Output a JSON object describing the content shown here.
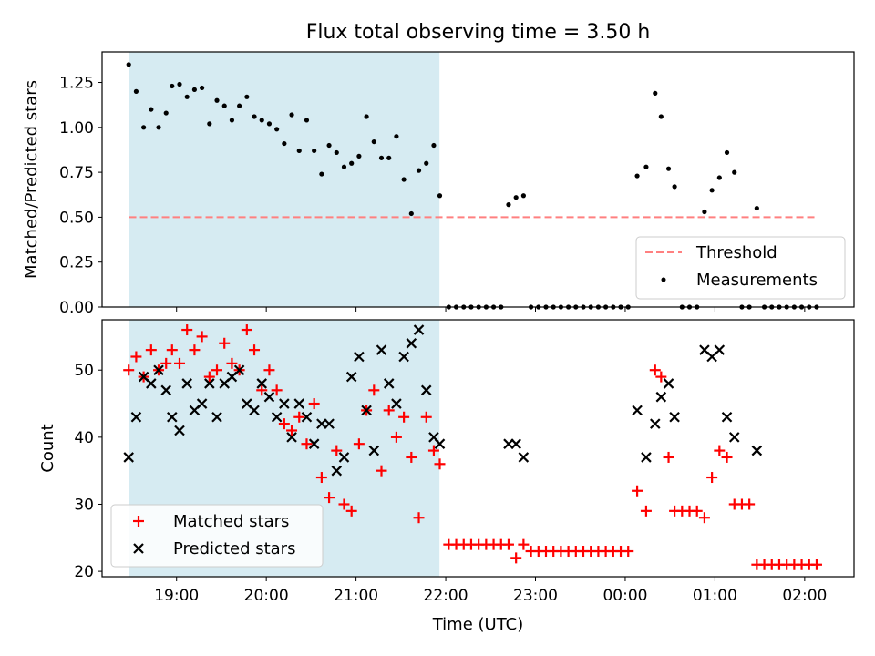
{
  "chart_data": [
    {
      "type": "scatter",
      "title": "Flux total observing time = 3.50 h",
      "ylabel": "Matched/Predicted stars",
      "xlim": [
        18.17,
        2.55
      ],
      "ylim": [
        0,
        1.42
      ],
      "yticks": [
        "0.00",
        "0.25",
        "0.50",
        "0.75",
        "1.00",
        "1.25"
      ],
      "shaded_span": [
        18.47,
        21.93
      ],
      "threshold": 0.5,
      "threshold_span": [
        18.47,
        2.12
      ],
      "legend_position": "lower right",
      "series": [
        {
          "name": "Threshold",
          "style": "dashed-line",
          "color": "#ff8080"
        },
        {
          "name": "Measurements",
          "style": "dot",
          "color": "#000000",
          "points": [
            [
              "18:28",
              1.35
            ],
            [
              "18:33",
              1.2
            ],
            [
              "18:38",
              1.0
            ],
            [
              "18:43",
              1.1
            ],
            [
              "18:48",
              1.0
            ],
            [
              "18:53",
              1.08
            ],
            [
              "18:57",
              1.23
            ],
            [
              "19:02",
              1.24
            ],
            [
              "19:07",
              1.17
            ],
            [
              "19:12",
              1.21
            ],
            [
              "19:17",
              1.22
            ],
            [
              "19:22",
              1.02
            ],
            [
              "19:27",
              1.15
            ],
            [
              "19:32",
              1.12
            ],
            [
              "19:37",
              1.04
            ],
            [
              "19:42",
              1.12
            ],
            [
              "19:47",
              1.17
            ],
            [
              "19:52",
              1.06
            ],
            [
              "19:57",
              1.04
            ],
            [
              "20:02",
              1.02
            ],
            [
              "20:07",
              0.99
            ],
            [
              "20:12",
              0.91
            ],
            [
              "20:17",
              1.07
            ],
            [
              "20:22",
              0.87
            ],
            [
              "20:27",
              1.04
            ],
            [
              "20:32",
              0.87
            ],
            [
              "20:37",
              0.74
            ],
            [
              "20:42",
              0.9
            ],
            [
              "20:47",
              0.86
            ],
            [
              "20:52",
              0.78
            ],
            [
              "20:57",
              0.8
            ],
            [
              "21:02",
              0.84
            ],
            [
              "21:07",
              1.06
            ],
            [
              "21:12",
              0.92
            ],
            [
              "21:17",
              0.83
            ],
            [
              "21:22",
              0.83
            ],
            [
              "21:27",
              0.95
            ],
            [
              "21:32",
              0.71
            ],
            [
              "21:37",
              0.52
            ],
            [
              "21:42",
              0.76
            ],
            [
              "21:47",
              0.8
            ],
            [
              "21:52",
              0.9
            ],
            [
              "21:56",
              0.62
            ],
            [
              "22:02",
              0.0
            ],
            [
              "22:07",
              0.0
            ],
            [
              "22:12",
              0.0
            ],
            [
              "22:17",
              0.0
            ],
            [
              "22:22",
              0.0
            ],
            [
              "22:27",
              0.0
            ],
            [
              "22:32",
              0.0
            ],
            [
              "22:37",
              0.0
            ],
            [
              "22:42",
              0.57
            ],
            [
              "22:47",
              0.61
            ],
            [
              "22:52",
              0.62
            ],
            [
              "22:57",
              0.0
            ],
            [
              "23:02",
              0.0
            ],
            [
              "23:07",
              0.0
            ],
            [
              "23:12",
              0.0
            ],
            [
              "23:17",
              0.0
            ],
            [
              "23:22",
              0.0
            ],
            [
              "23:27",
              0.0
            ],
            [
              "23:32",
              0.0
            ],
            [
              "23:37",
              0.0
            ],
            [
              "23:42",
              0.0
            ],
            [
              "23:47",
              0.0
            ],
            [
              "23:52",
              0.0
            ],
            [
              "23:57",
              0.0
            ],
            [
              "00:02",
              0.0
            ],
            [
              "00:08",
              0.73
            ],
            [
              "00:14",
              0.78
            ],
            [
              "00:20",
              1.19
            ],
            [
              "00:24",
              1.06
            ],
            [
              "00:29",
              0.77
            ],
            [
              "00:33",
              0.67
            ],
            [
              "00:38",
              0.0
            ],
            [
              "00:43",
              0.0
            ],
            [
              "00:48",
              0.0
            ],
            [
              "00:53",
              0.53
            ],
            [
              "00:58",
              0.65
            ],
            [
              "01:03",
              0.72
            ],
            [
              "01:08",
              0.86
            ],
            [
              "01:13",
              0.75
            ],
            [
              "01:18",
              0.0
            ],
            [
              "01:23",
              0.0
            ],
            [
              "01:28",
              0.55
            ],
            [
              "01:33",
              0.0
            ],
            [
              "01:38",
              0.0
            ],
            [
              "01:43",
              0.0
            ],
            [
              "01:48",
              0.0
            ],
            [
              "01:53",
              0.0
            ],
            [
              "01:58",
              0.0
            ],
            [
              "02:03",
              0.0
            ],
            [
              "02:08",
              0.0
            ]
          ]
        }
      ]
    },
    {
      "type": "scatter",
      "xlabel": "Time (UTC)",
      "ylabel": "Count",
      "xlim": [
        18.17,
        2.55
      ],
      "ylim": [
        19.2,
        57.5
      ],
      "yticks": [
        "20",
        "30",
        "40",
        "50"
      ],
      "xticks": [
        "19:00",
        "20:00",
        "21:00",
        "22:00",
        "23:00",
        "00:00",
        "01:00",
        "02:00"
      ],
      "shaded_span": [
        18.47,
        21.93
      ],
      "legend_position": "lower left",
      "series": [
        {
          "name": "Matched stars",
          "marker": "plus",
          "color": "#ff0000",
          "points": [
            [
              "18:28",
              50
            ],
            [
              "18:33",
              52
            ],
            [
              "18:38",
              49
            ],
            [
              "18:43",
              53
            ],
            [
              "18:48",
              50
            ],
            [
              "18:53",
              51
            ],
            [
              "18:57",
              53
            ],
            [
              "19:02",
              51
            ],
            [
              "19:07",
              56
            ],
            [
              "19:12",
              53
            ],
            [
              "19:17",
              55
            ],
            [
              "19:22",
              49
            ],
            [
              "19:27",
              50
            ],
            [
              "19:32",
              54
            ],
            [
              "19:37",
              51
            ],
            [
              "19:42",
              50
            ],
            [
              "19:47",
              56
            ],
            [
              "19:52",
              53
            ],
            [
              "19:57",
              47
            ],
            [
              "20:02",
              50
            ],
            [
              "20:07",
              47
            ],
            [
              "20:12",
              42
            ],
            [
              "20:17",
              41
            ],
            [
              "20:22",
              43
            ],
            [
              "20:27",
              39
            ],
            [
              "20:32",
              45
            ],
            [
              "20:37",
              34
            ],
            [
              "20:42",
              31
            ],
            [
              "20:47",
              38
            ],
            [
              "20:52",
              30
            ],
            [
              "20:57",
              29
            ],
            [
              "21:02",
              39
            ],
            [
              "21:07",
              44
            ],
            [
              "21:12",
              47
            ],
            [
              "21:17",
              35
            ],
            [
              "21:22",
              44
            ],
            [
              "21:27",
              40
            ],
            [
              "21:32",
              43
            ],
            [
              "21:37",
              37
            ],
            [
              "21:42",
              28
            ],
            [
              "21:47",
              43
            ],
            [
              "21:52",
              38
            ],
            [
              "21:56",
              36
            ],
            [
              "22:02",
              24
            ],
            [
              "22:07",
              24
            ],
            [
              "22:12",
              24
            ],
            [
              "22:17",
              24
            ],
            [
              "22:22",
              24
            ],
            [
              "22:27",
              24
            ],
            [
              "22:32",
              24
            ],
            [
              "22:37",
              24
            ],
            [
              "22:42",
              24
            ],
            [
              "22:47",
              22
            ],
            [
              "22:52",
              24
            ],
            [
              "22:57",
              23
            ],
            [
              "23:02",
              23
            ],
            [
              "23:07",
              23
            ],
            [
              "23:12",
              23
            ],
            [
              "23:17",
              23
            ],
            [
              "23:22",
              23
            ],
            [
              "23:27",
              23
            ],
            [
              "23:32",
              23
            ],
            [
              "23:37",
              23
            ],
            [
              "23:42",
              23
            ],
            [
              "23:47",
              23
            ],
            [
              "23:52",
              23
            ],
            [
              "23:57",
              23
            ],
            [
              "00:02",
              23
            ],
            [
              "00:08",
              32
            ],
            [
              "00:14",
              29
            ],
            [
              "00:20",
              50
            ],
            [
              "00:24",
              49
            ],
            [
              "00:29",
              37
            ],
            [
              "00:33",
              29
            ],
            [
              "00:38",
              29
            ],
            [
              "00:43",
              29
            ],
            [
              "00:48",
              29
            ],
            [
              "00:53",
              28
            ],
            [
              "00:58",
              34
            ],
            [
              "01:03",
              38
            ],
            [
              "01:08",
              37
            ],
            [
              "01:13",
              30
            ],
            [
              "01:18",
              30
            ],
            [
              "01:23",
              30
            ],
            [
              "01:28",
              21
            ],
            [
              "01:33",
              21
            ],
            [
              "01:38",
              21
            ],
            [
              "01:43",
              21
            ],
            [
              "01:48",
              21
            ],
            [
              "01:53",
              21
            ],
            [
              "01:58",
              21
            ],
            [
              "02:03",
              21
            ],
            [
              "02:08",
              21
            ]
          ]
        },
        {
          "name": "Predicted stars",
          "marker": "x",
          "color": "#000000",
          "points": [
            [
              "18:28",
              37
            ],
            [
              "18:33",
              43
            ],
            [
              "18:38",
              49
            ],
            [
              "18:43",
              48
            ],
            [
              "18:48",
              50
            ],
            [
              "18:53",
              47
            ],
            [
              "18:57",
              43
            ],
            [
              "19:02",
              41
            ],
            [
              "19:07",
              48
            ],
            [
              "19:12",
              44
            ],
            [
              "19:17",
              45
            ],
            [
              "19:22",
              48
            ],
            [
              "19:27",
              43
            ],
            [
              "19:32",
              48
            ],
            [
              "19:37",
              49
            ],
            [
              "19:42",
              50
            ],
            [
              "19:47",
              45
            ],
            [
              "19:52",
              44
            ],
            [
              "19:57",
              48
            ],
            [
              "20:02",
              46
            ],
            [
              "20:07",
              43
            ],
            [
              "20:12",
              45
            ],
            [
              "20:17",
              40
            ],
            [
              "20:22",
              45
            ],
            [
              "20:27",
              43
            ],
            [
              "20:32",
              39
            ],
            [
              "20:37",
              42
            ],
            [
              "20:42",
              42
            ],
            [
              "20:47",
              35
            ],
            [
              "20:52",
              37
            ],
            [
              "20:57",
              49
            ],
            [
              "21:02",
              52
            ],
            [
              "21:07",
              44
            ],
            [
              "21:12",
              38
            ],
            [
              "21:17",
              53
            ],
            [
              "21:22",
              48
            ],
            [
              "21:27",
              45
            ],
            [
              "21:32",
              52
            ],
            [
              "21:37",
              54
            ],
            [
              "21:42",
              56
            ],
            [
              "21:47",
              47
            ],
            [
              "21:52",
              40
            ],
            [
              "21:56",
              39
            ],
            [
              "22:42",
              39
            ],
            [
              "22:47",
              39
            ],
            [
              "22:52",
              37
            ],
            [
              "00:08",
              44
            ],
            [
              "00:14",
              37
            ],
            [
              "00:20",
              42
            ],
            [
              "00:24",
              46
            ],
            [
              "00:29",
              48
            ],
            [
              "00:33",
              43
            ],
            [
              "00:53",
              53
            ],
            [
              "00:58",
              52
            ],
            [
              "01:03",
              53
            ],
            [
              "01:08",
              43
            ],
            [
              "01:13",
              40
            ],
            [
              "01:28",
              38
            ]
          ]
        }
      ]
    }
  ],
  "colors": {
    "shade": "#add8e6",
    "threshold": "#ff8080",
    "matched": "#ff0000",
    "predicted": "#000000"
  }
}
